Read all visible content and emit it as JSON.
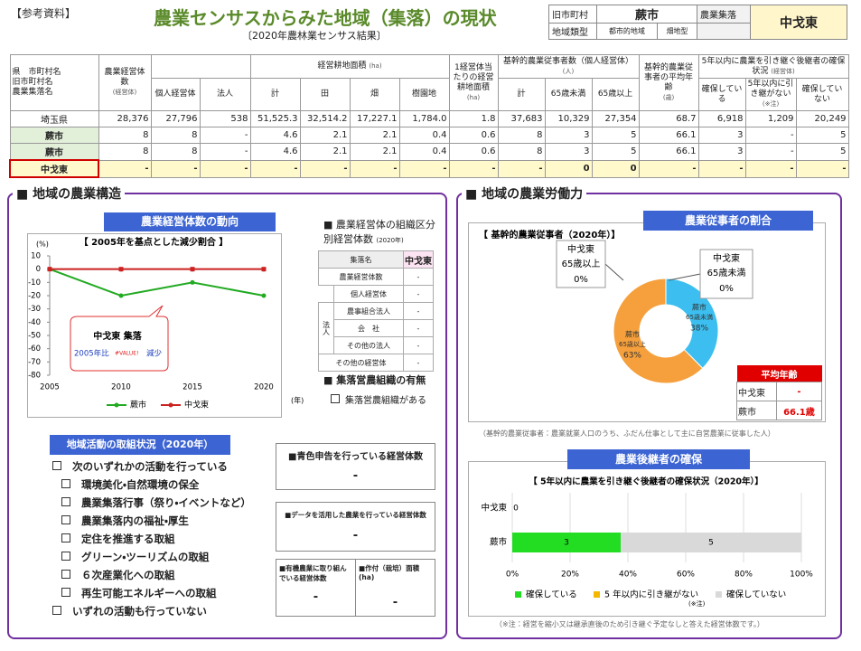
{
  "header": {
    "tag": "【参考資料】",
    "title": "農業センサスからみた地域（集落）の現状",
    "subtitle": "〔2020年農林業センサス結果〕",
    "info": {
      "old_municipality_label": "旧市町村",
      "old_municipality": "蕨市",
      "settlement_label": "農業集落",
      "settlement": "中戈東",
      "region_type_label": "地域類型",
      "region_type": "都市的地域",
      "farm_type": "畑地型"
    }
  },
  "table": {
    "head": {
      "name_col": [
        "県　市町村名",
        "旧市町村名",
        "農業集落名"
      ],
      "entities": "農業経営体数",
      "entities_unit": "(経営体)",
      "individual": "個人経営体",
      "corporate": "法人",
      "area": "経営耕地面積",
      "area_unit": "(ha)",
      "area_cols": [
        "計",
        "田",
        "畑",
        "樹園地"
      ],
      "per_entity": "1経営体当たりの経営耕地面積",
      "per_entity_unit": "(ha)",
      "workers": "基幹的農業従事者数（個人経営体）",
      "workers_unit": "(人)",
      "workers_cols": [
        "計",
        "65歳未満",
        "65歳以上"
      ],
      "age": "基幹的農業従事者の平均年齢",
      "age_unit": "(歳)",
      "successor": "5年以内に農業を引き継ぐ後継者の確保状況",
      "successor_unit": "(経営体)",
      "successor_cols": [
        "確保している",
        "5年以内に引き継がない",
        "確保していない"
      ],
      "successor_note": "(※注)"
    },
    "rows": [
      {
        "name": "埼玉県",
        "cells": [
          "28,376",
          "27,796",
          "538",
          "51,525.3",
          "32,514.2",
          "17,227.1",
          "1,784.0",
          "1.8",
          "37,683",
          "10,329",
          "27,354",
          "68.7",
          "6,918",
          "1,209",
          "20,249"
        ]
      },
      {
        "name": "蕨市",
        "cells": [
          "8",
          "8",
          "-",
          "4.6",
          "2.1",
          "2.1",
          "0.4",
          "0.6",
          "8",
          "3",
          "5",
          "66.1",
          "3",
          "-",
          "5"
        ]
      },
      {
        "name": "蕨市",
        "cells": [
          "8",
          "8",
          "-",
          "4.6",
          "2.1",
          "2.1",
          "0.4",
          "0.6",
          "8",
          "3",
          "5",
          "66.1",
          "3",
          "-",
          "5"
        ]
      },
      {
        "name": "中戈東",
        "cells": [
          "-",
          "-",
          "-",
          "-",
          "-",
          "-",
          "-",
          "-",
          "-",
          "0",
          "0",
          "-",
          "-",
          "-",
          "-"
        ]
      }
    ]
  },
  "structure": {
    "heading": "■ 地域の農業構造",
    "trend_title": "農業経営体数の動向",
    "callout": {
      "name": "中戈東 集落",
      "prefix": "2005年比",
      "value": "#VALUE!",
      "suffix": "減少"
    },
    "org": {
      "title": "■ 農業経営体の組織区分別経営体数",
      "year": "(2020年)",
      "header_label": "集落名",
      "header_value": "中戈東",
      "corporate_label": "法人",
      "rows": [
        {
          "label": "農業経営体数",
          "value": "-"
        },
        {
          "label": "個人経営体",
          "value": "-"
        },
        {
          "label": "農事組合法人",
          "value": "-"
        },
        {
          "label": "会　社",
          "value": "-"
        },
        {
          "label": "その他の法人",
          "value": "-"
        },
        {
          "label": "その他の経営体",
          "value": "-"
        }
      ]
    },
    "group_farming": {
      "title": "■ 集落営農組織の有無",
      "option": "集落営農組織がある"
    },
    "activities": {
      "title": "地域活動の取組状況（2020年）",
      "any": "次のいずれかの活動を行っている",
      "items": [
        "環境美化・自然環境の保全",
        "農業集落行事（祭り・イベントなど）",
        "農業集落内の福祉・厚生",
        "定住を推進する取組",
        "グリーン・ツーリズムの取組",
        "６次産業化への取組",
        "再生可能エネルギーへの取組"
      ],
      "none": "いずれの活動も行っていない"
    },
    "boxes": {
      "blue_return": {
        "title": "■青色申告を行っている経営体数",
        "value": "-"
      },
      "data_use": {
        "title": "■データを活用した農業を行っている経営体数",
        "value": "-"
      },
      "organic": {
        "title": "■有機農業に取り組んでいる経営体数",
        "value": "-",
        "area_title": "■作付（栽培）面積(ha)",
        "area_value": "-"
      }
    }
  },
  "labor": {
    "heading": "■ 地域の農業労働力",
    "share_title": "農業従事者の割合",
    "avg_age": {
      "title": "平均年齢",
      "rows": [
        {
          "name": "中戈東",
          "value": "-"
        },
        {
          "name": "蕨市",
          "value": "66.1歳"
        }
      ]
    },
    "definition": "（基幹的農業従事者：農業就業人口のうち、ふだん仕事として主に自営農業に従事した人）",
    "successor_title": "農業後継者の確保",
    "note": "（※注：経営を縮小又は継承直後のため引き継ぐ予定なしと答えた経営体数です。）"
  },
  "chart_data": [
    {
      "type": "line",
      "title": "【 2005年を基点とした減少割合 】",
      "y_unit": "(%)",
      "x_unit": "(年)",
      "x": [
        2005,
        2010,
        2015,
        2020
      ],
      "xlim": [
        2005,
        2020
      ],
      "xticks": [
        2005,
        2010,
        2015,
        2020
      ],
      "ylim": [
        -80,
        10
      ],
      "yticks": [
        10,
        0,
        -10,
        -20,
        -30,
        -40,
        -50,
        -60,
        -70,
        -80
      ],
      "grid": false,
      "series": [
        {
          "name": "蕨市",
          "color": "#22aa22",
          "values": [
            0,
            -20,
            -10,
            -20
          ]
        },
        {
          "name": "中戈東",
          "color": "#cc2222",
          "values": [
            0,
            0,
            0,
            0
          ]
        }
      ]
    },
    {
      "type": "donut",
      "title": "【 基幹的農業従事者（2020年）】",
      "name": "蕨市",
      "categories": [
        "65歳未満",
        "65歳以上"
      ],
      "values": [
        38,
        63
      ],
      "value_labels": [
        "38%",
        "63%"
      ],
      "colors": [
        "#3cbff0",
        "#f5a03c"
      ],
      "callouts": [
        {
          "name": "中戈東",
          "category": "65歳以上",
          "value": {
            "value": 0,
            "label": "0%"
          }
        },
        {
          "name": "中戈東",
          "category": "65歳未満",
          "value": {
            "value": 0,
            "label": "0%"
          }
        }
      ]
    },
    {
      "type": "hbar_stacked",
      "title": "【 5年以内に農業を引き継ぐ後継者の確保状況（2020年）】",
      "categories": [
        "中戈東",
        "蕨市"
      ],
      "xlim": [
        0,
        100
      ],
      "xticks": [
        {
          "value": 0,
          "label": "0%"
        },
        {
          "value": 20,
          "label": "20%"
        },
        {
          "value": 40,
          "label": "40%"
        },
        {
          "value": 60,
          "label": "60%"
        },
        {
          "value": 80,
          "label": "80%"
        },
        {
          "value": 100,
          "label": "100%"
        }
      ],
      "grid": true,
      "legend_note": "(※注)",
      "series": [
        {
          "name": "確保している",
          "color": "#22dd22",
          "values": [
            0,
            37.5
          ],
          "counts": [
            0,
            3
          ]
        },
        {
          "name": "5 年以内に引き継がない",
          "color": "#f5b800",
          "values": [
            0,
            0
          ],
          "counts": [
            null,
            0
          ]
        },
        {
          "name": "確保していない",
          "color": "#d9d9d9",
          "values": [
            0,
            62.5
          ],
          "counts": [
            null,
            5
          ]
        }
      ]
    }
  ]
}
